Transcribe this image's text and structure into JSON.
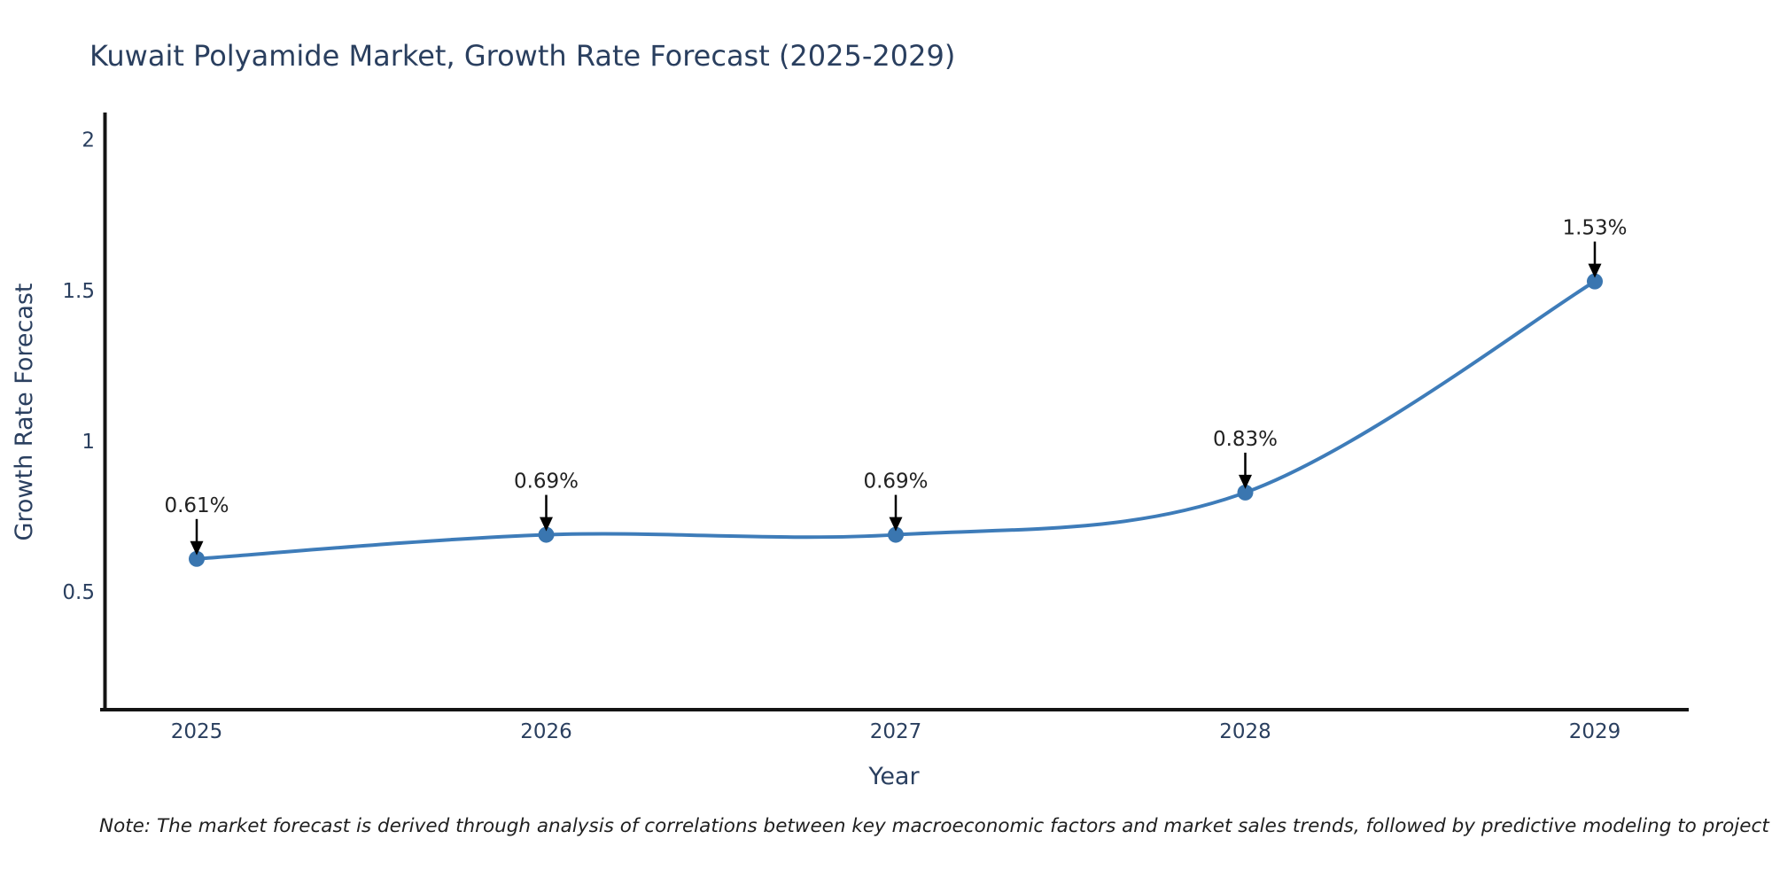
{
  "title": "Kuwait Polyamide Market, Growth Rate Forecast (2025-2029)",
  "note": "Note: The market forecast is derived through analysis of correlations between key macroeconomic factors and market sales trends, followed by predictive modeling to project future sales",
  "chart_data": {
    "type": "line",
    "title": "Kuwait Polyamide Market, Growth Rate Forecast (2025-2029)",
    "xlabel": "Year",
    "ylabel": "Growth Rate Forecast",
    "categories": [
      "2025",
      "2026",
      "2027",
      "2028",
      "2029"
    ],
    "values": [
      0.61,
      0.69,
      0.69,
      0.83,
      1.53
    ],
    "point_labels": [
      "0.61%",
      "0.69%",
      "0.69%",
      "0.83%",
      "1.53%"
    ],
    "ytick_values": [
      0.5,
      1,
      1.5,
      2
    ],
    "ytick_labels": [
      "0.5",
      "1",
      "1.5",
      "2"
    ],
    "ylim": [
      0.11,
      2.09
    ],
    "line_shape": "spline",
    "grid": false,
    "legend": false,
    "colors": {
      "line": "#3e7cb9",
      "marker": "#3a76b0",
      "axis": "#141414",
      "tick_text": "#2a3f5f",
      "axis_title_text": "#2a3f5f",
      "title_text": "#2a3f5f",
      "annotation_text": "#222222",
      "arrow": "#000000"
    }
  }
}
